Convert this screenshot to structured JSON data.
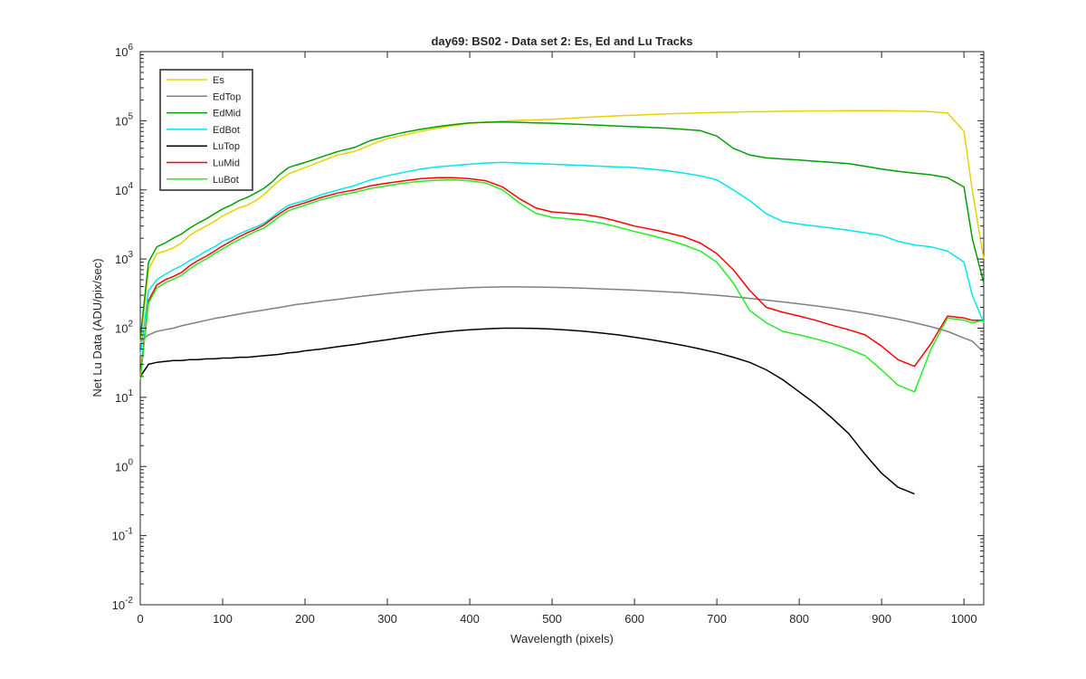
{
  "chart_data": {
    "type": "line",
    "title": "day69: BS02 - Data set 2: Es, Ed and Lu Tracks",
    "xlabel": "Wavelength (pixels)",
    "ylabel": "Net Lu Data (ADU/pix/sec)",
    "xlim": [
      0,
      1024
    ],
    "ylim": [
      0.01,
      1000000
    ],
    "yscale": "log",
    "grid": false,
    "legend_position": "top-left",
    "x_ticks": [
      0,
      100,
      200,
      300,
      400,
      500,
      600,
      700,
      800,
      900,
      1000
    ],
    "y_ticks": [
      {
        "value": 0.01,
        "base": "10",
        "exp": "-2"
      },
      {
        "value": 0.1,
        "base": "10",
        "exp": "-1"
      },
      {
        "value": 1,
        "base": "10",
        "exp": "0"
      },
      {
        "value": 10,
        "base": "10",
        "exp": "1"
      },
      {
        "value": 100,
        "base": "10",
        "exp": "2"
      },
      {
        "value": 1000,
        "base": "10",
        "exp": "3"
      },
      {
        "value": 10000,
        "base": "10",
        "exp": "4"
      },
      {
        "value": 100000,
        "base": "10",
        "exp": "5"
      },
      {
        "value": 1000000,
        "base": "10",
        "exp": "6"
      }
    ],
    "x": [
      0,
      10,
      20,
      30,
      40,
      50,
      60,
      70,
      80,
      90,
      100,
      110,
      120,
      130,
      140,
      150,
      160,
      170,
      180,
      190,
      200,
      220,
      240,
      260,
      280,
      300,
      320,
      340,
      360,
      380,
      400,
      420,
      440,
      460,
      480,
      500,
      520,
      540,
      560,
      580,
      600,
      620,
      640,
      660,
      680,
      700,
      720,
      740,
      760,
      780,
      800,
      820,
      840,
      860,
      880,
      900,
      920,
      940,
      960,
      980,
      1000,
      1010,
      1024
    ],
    "series": [
      {
        "name": "Es",
        "color": "#e6d200",
        "values": [
          60,
          700,
          1200,
          1300,
          1450,
          1700,
          2200,
          2600,
          3000,
          3500,
          4200,
          4800,
          5500,
          6000,
          7000,
          8500,
          11000,
          14000,
          17000,
          19000,
          21000,
          26000,
          32000,
          36000,
          45000,
          55000,
          62000,
          70000,
          78000,
          85000,
          92000,
          96000,
          99000,
          101000,
          103000,
          105000,
          108000,
          112000,
          115000,
          118000,
          120000,
          123000,
          126000,
          128000,
          130000,
          132000,
          133000,
          135000,
          136000,
          137000,
          138000,
          139000,
          139000,
          140000,
          140000,
          140000,
          139000,
          138000,
          135000,
          130000,
          70000,
          10000,
          1000
        ]
      },
      {
        "name": "EdTop",
        "color": "#808080",
        "values": [
          65,
          80,
          90,
          95,
          100,
          108,
          115,
          122,
          130,
          138,
          145,
          152,
          160,
          168,
          175,
          183,
          192,
          200,
          210,
          220,
          228,
          245,
          262,
          280,
          300,
          318,
          335,
          352,
          365,
          375,
          385,
          392,
          395,
          395,
          393,
          390,
          385,
          378,
          370,
          362,
          355,
          345,
          335,
          325,
          312,
          300,
          285,
          270,
          255,
          240,
          225,
          210,
          195,
          180,
          165,
          150,
          135,
          120,
          105,
          90,
          72,
          65,
          45
        ]
      },
      {
        "name": "EdMid",
        "color": "#00a000",
        "values": [
          70,
          900,
          1500,
          1700,
          2000,
          2300,
          2800,
          3300,
          3800,
          4500,
          5300,
          6000,
          7000,
          7800,
          9000,
          10500,
          13000,
          17000,
          21000,
          23000,
          25000,
          30000,
          36000,
          41000,
          52000,
          60000,
          68000,
          75000,
          82000,
          88000,
          93000,
          95000,
          96000,
          95000,
          93000,
          92000,
          90000,
          88000,
          86000,
          84000,
          82000,
          80000,
          78000,
          75000,
          72000,
          60000,
          40000,
          32000,
          29000,
          28000,
          27000,
          26000,
          25000,
          24000,
          22000,
          20000,
          18500,
          17500,
          16500,
          15000,
          11000,
          2000,
          450
        ]
      },
      {
        "name": "EdBot",
        "color": "#00e5ee",
        "values": [
          40,
          350,
          500,
          600,
          700,
          800,
          950,
          1100,
          1300,
          1500,
          1800,
          2000,
          2300,
          2600,
          2900,
          3300,
          4000,
          5000,
          6000,
          6500,
          7000,
          8500,
          10000,
          11500,
          14000,
          16000,
          18000,
          20000,
          21500,
          22500,
          23500,
          24500,
          25000,
          24500,
          24000,
          23500,
          23000,
          22500,
          22000,
          21500,
          21000,
          20000,
          19000,
          17500,
          16000,
          14000,
          10000,
          7000,
          4500,
          3500,
          3200,
          3000,
          2800,
          2600,
          2400,
          2200,
          1800,
          1600,
          1500,
          1300,
          900,
          300,
          120
        ]
      },
      {
        "name": "LuTop",
        "color": "#000000",
        "values": [
          20,
          30,
          32,
          33,
          34,
          34,
          35,
          35,
          36,
          36,
          37,
          37,
          38,
          38,
          39,
          40,
          41,
          42,
          44,
          45,
          47,
          50,
          54,
          58,
          63,
          68,
          74,
          80,
          86,
          91,
          95,
          98,
          100,
          100,
          99,
          97,
          94,
          90,
          85,
          80,
          74,
          68,
          62,
          56,
          50,
          44,
          38,
          32,
          25,
          18,
          12,
          8,
          5,
          3,
          1.5,
          0.8,
          0.5,
          0.4,
          null,
          null,
          null,
          null,
          null
        ]
      },
      {
        "name": "LuMid",
        "color": "#ff0000",
        "values": [
          20,
          250,
          420,
          500,
          560,
          640,
          800,
          950,
          1100,
          1300,
          1550,
          1800,
          2100,
          2400,
          2700,
          3100,
          3800,
          4600,
          5500,
          6000,
          6500,
          7800,
          9000,
          10000,
          11500,
          12500,
          13500,
          14500,
          15000,
          15000,
          14500,
          13500,
          11000,
          7500,
          5500,
          4800,
          4600,
          4400,
          4000,
          3500,
          3000,
          2700,
          2400,
          2100,
          1700,
          1200,
          700,
          350,
          200,
          170,
          150,
          130,
          110,
          95,
          80,
          55,
          35,
          28,
          60,
          150,
          140,
          130,
          130
        ]
      },
      {
        "name": "LuBot",
        "color": "#22ee22",
        "values": [
          18,
          230,
          380,
          450,
          510,
          580,
          720,
          860,
          1000,
          1200,
          1400,
          1650,
          1900,
          2200,
          2500,
          2800,
          3400,
          4200,
          5000,
          5500,
          6000,
          7200,
          8300,
          9200,
          10500,
          11500,
          12500,
          13300,
          13800,
          14000,
          13500,
          12500,
          10000,
          6500,
          4600,
          4000,
          3800,
          3600,
          3300,
          2900,
          2500,
          2200,
          1900,
          1600,
          1300,
          900,
          450,
          180,
          120,
          90,
          80,
          70,
          60,
          50,
          40,
          25,
          15,
          12,
          50,
          140,
          130,
          120,
          130
        ]
      }
    ]
  }
}
